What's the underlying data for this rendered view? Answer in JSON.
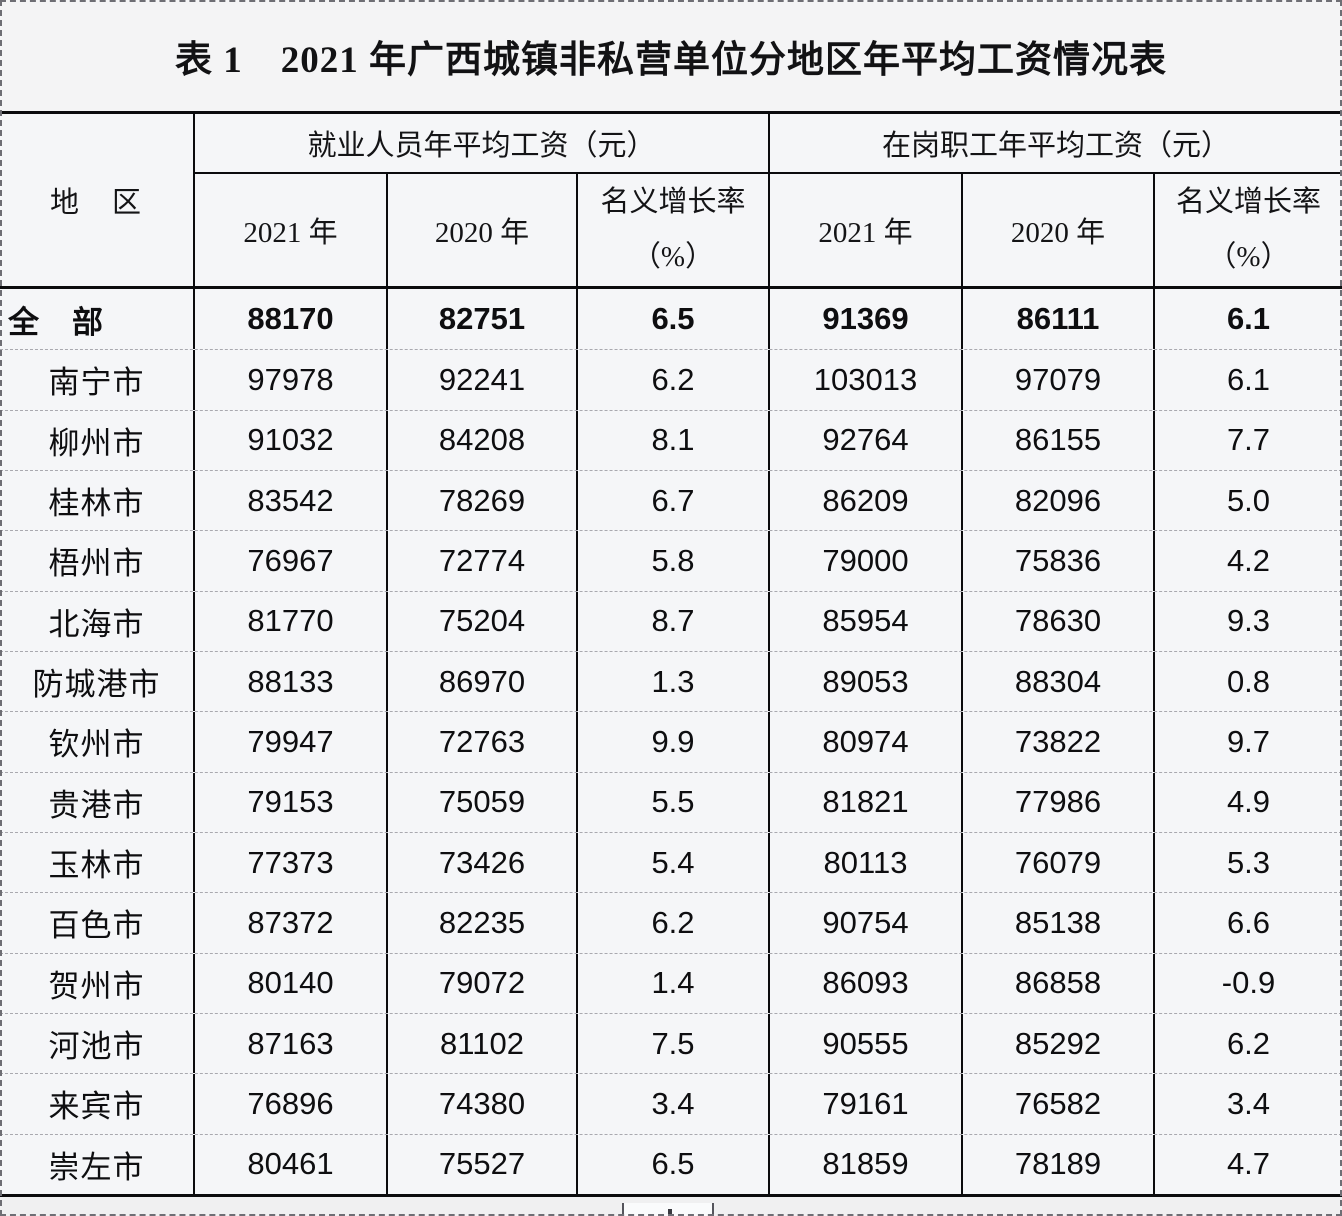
{
  "title": "表 1　2021 年广西城镇非私营单位分地区年平均工资情况表",
  "table": {
    "region_header": "地　区",
    "group1_label": "就业人员年平均工资（元）",
    "group2_label": "在岗职工年平均工资（元）",
    "sub_year_2021": "2021 年",
    "sub_year_2020": "2020 年",
    "sub_growth": "名义增长率\n（%）",
    "rows": [
      {
        "is_total": true,
        "region": "全　部",
        "e21": "88170",
        "e20": "82751",
        "eg": "6.5",
        "s21": "91369",
        "s20": "86111",
        "sg": "6.1"
      },
      {
        "is_total": false,
        "region": "南宁市",
        "e21": "97978",
        "e20": "92241",
        "eg": "6.2",
        "s21": "103013",
        "s20": "97079",
        "sg": "6.1"
      },
      {
        "is_total": false,
        "region": "柳州市",
        "e21": "91032",
        "e20": "84208",
        "eg": "8.1",
        "s21": "92764",
        "s20": "86155",
        "sg": "7.7"
      },
      {
        "is_total": false,
        "region": "桂林市",
        "e21": "83542",
        "e20": "78269",
        "eg": "6.7",
        "s21": "86209",
        "s20": "82096",
        "sg": "5.0"
      },
      {
        "is_total": false,
        "region": "梧州市",
        "e21": "76967",
        "e20": "72774",
        "eg": "5.8",
        "s21": "79000",
        "s20": "75836",
        "sg": "4.2"
      },
      {
        "is_total": false,
        "region": "北海市",
        "e21": "81770",
        "e20": "75204",
        "eg": "8.7",
        "s21": "85954",
        "s20": "78630",
        "sg": "9.3"
      },
      {
        "is_total": false,
        "region": "防城港市",
        "e21": "88133",
        "e20": "86970",
        "eg": "1.3",
        "s21": "89053",
        "s20": "88304",
        "sg": "0.8"
      },
      {
        "is_total": false,
        "region": "钦州市",
        "e21": "79947",
        "e20": "72763",
        "eg": "9.9",
        "s21": "80974",
        "s20": "73822",
        "sg": "9.7"
      },
      {
        "is_total": false,
        "region": "贵港市",
        "e21": "79153",
        "e20": "75059",
        "eg": "5.5",
        "s21": "81821",
        "s20": "77986",
        "sg": "4.9"
      },
      {
        "is_total": false,
        "region": "玉林市",
        "e21": "77373",
        "e20": "73426",
        "eg": "5.4",
        "s21": "80113",
        "s20": "76079",
        "sg": "5.3"
      },
      {
        "is_total": false,
        "region": "百色市",
        "e21": "87372",
        "e20": "82235",
        "eg": "6.2",
        "s21": "90754",
        "s20": "85138",
        "sg": "6.6"
      },
      {
        "is_total": false,
        "region": "贺州市",
        "e21": "80140",
        "e20": "79072",
        "eg": "1.4",
        "s21": "86093",
        "s20": "86858",
        "sg": "-0.9"
      },
      {
        "is_total": false,
        "region": "河池市",
        "e21": "87163",
        "e20": "81102",
        "eg": "7.5",
        "s21": "90555",
        "s20": "85292",
        "sg": "6.2"
      },
      {
        "is_total": false,
        "region": "来宾市",
        "e21": "76896",
        "e20": "74380",
        "eg": "3.4",
        "s21": "79161",
        "s20": "76582",
        "sg": "3.4"
      },
      {
        "is_total": false,
        "region": "崇左市",
        "e21": "80461",
        "e20": "75527",
        "eg": "6.5",
        "s21": "81859",
        "s20": "78189",
        "sg": "4.7"
      }
    ]
  },
  "chart_data": {
    "type": "table",
    "title": "表1 2021年广西城镇非私营单位分地区年平均工资情况表",
    "column_groups": [
      "就业人员年平均工资（元）",
      "在岗职工年平均工资（元）"
    ],
    "columns": [
      "地区",
      "就业人员2021年",
      "就业人员2020年",
      "就业人员名义增长率(%)",
      "在岗职工2021年",
      "在岗职工2020年",
      "在岗职工名义增长率(%)"
    ],
    "rows": [
      [
        "全部",
        88170,
        82751,
        6.5,
        91369,
        86111,
        6.1
      ],
      [
        "南宁市",
        97978,
        92241,
        6.2,
        103013,
        97079,
        6.1
      ],
      [
        "柳州市",
        91032,
        84208,
        8.1,
        92764,
        86155,
        7.7
      ],
      [
        "桂林市",
        83542,
        78269,
        6.7,
        86209,
        82096,
        5.0
      ],
      [
        "梧州市",
        76967,
        72774,
        5.8,
        79000,
        75836,
        4.2
      ],
      [
        "北海市",
        81770,
        75204,
        8.7,
        85954,
        78630,
        9.3
      ],
      [
        "防城港市",
        88133,
        86970,
        1.3,
        89053,
        88304,
        0.8
      ],
      [
        "钦州市",
        79947,
        72763,
        9.9,
        80974,
        73822,
        9.7
      ],
      [
        "贵港市",
        79153,
        75059,
        5.5,
        81821,
        77986,
        4.9
      ],
      [
        "玉林市",
        77373,
        73426,
        5.4,
        80113,
        76079,
        5.3
      ],
      [
        "百色市",
        87372,
        82235,
        6.2,
        90754,
        85138,
        6.6
      ],
      [
        "贺州市",
        80140,
        79072,
        1.4,
        86093,
        86858,
        -0.9
      ],
      [
        "河池市",
        87163,
        81102,
        7.5,
        90555,
        85292,
        6.2
      ],
      [
        "来宾市",
        76896,
        74380,
        3.4,
        79161,
        76582,
        3.4
      ],
      [
        "崇左市",
        80461,
        75527,
        6.5,
        81859,
        78189,
        4.7
      ]
    ]
  }
}
